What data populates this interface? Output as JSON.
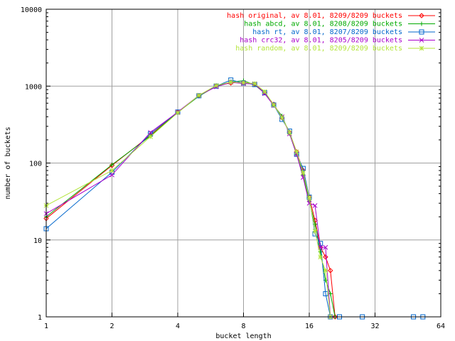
{
  "chart_data": {
    "type": "line",
    "xlabel": "bucket length",
    "ylabel": "number of buckets",
    "xscale": "log2",
    "yscale": "log10",
    "xlim": [
      1,
      64
    ],
    "ylim": [
      1,
      10000
    ],
    "grid": true,
    "legend_position": "top-right",
    "xticks": [
      {
        "value": 1,
        "label": "1"
      },
      {
        "value": 2,
        "label": "2"
      },
      {
        "value": 4,
        "label": "4"
      },
      {
        "value": 8,
        "label": "8"
      },
      {
        "value": 16,
        "label": "16"
      },
      {
        "value": 32,
        "label": "32"
      },
      {
        "value": 64,
        "label": "64"
      }
    ],
    "yticks": [
      {
        "value": 1,
        "label": "1"
      },
      {
        "value": 10,
        "label": "10"
      },
      {
        "value": 100,
        "label": "100"
      },
      {
        "value": 1000,
        "label": "1000"
      },
      {
        "value": 10000,
        "label": "10000"
      }
    ],
    "series": [
      {
        "name": "hash original, av 8.01, 8209/8209 buckets",
        "color": "#ff0000",
        "marker": "diamond",
        "points": [
          [
            1,
            19
          ],
          [
            2,
            93
          ],
          [
            3,
            230
          ],
          [
            4,
            460
          ],
          [
            5,
            750
          ],
          [
            6,
            1010
          ],
          [
            7,
            1100
          ],
          [
            8,
            1120
          ],
          [
            9,
            1060
          ],
          [
            10,
            820
          ],
          [
            11,
            580
          ],
          [
            12,
            390
          ],
          [
            13,
            250
          ],
          [
            14,
            140
          ],
          [
            15,
            80
          ],
          [
            16,
            36
          ],
          [
            17,
            18
          ],
          [
            18,
            8
          ],
          [
            19,
            6
          ],
          [
            20,
            4
          ],
          [
            21,
            1
          ]
        ]
      },
      {
        "name": "hash abcd, av 8.01, 8208/8209 buckets",
        "color": "#00aa00",
        "marker": "plus",
        "points": [
          [
            1,
            20
          ],
          [
            2,
            95
          ],
          [
            3,
            225
          ],
          [
            4,
            455
          ],
          [
            5,
            740
          ],
          [
            6,
            1000
          ],
          [
            7,
            1130
          ],
          [
            8,
            1180
          ],
          [
            9,
            1040
          ],
          [
            10,
            810
          ],
          [
            11,
            560
          ],
          [
            12,
            410
          ],
          [
            13,
            240
          ],
          [
            14,
            130
          ],
          [
            15,
            70
          ],
          [
            16,
            32
          ],
          [
            17,
            16
          ],
          [
            18,
            7
          ],
          [
            19,
            3
          ],
          [
            20,
            2
          ],
          [
            21,
            1
          ]
        ]
      },
      {
        "name": "hash rt, av 8.01, 8207/8209 buckets",
        "color": "#0066cc",
        "marker": "square",
        "points": [
          [
            1,
            14
          ],
          [
            2,
            76
          ],
          [
            3,
            240
          ],
          [
            4,
            460
          ],
          [
            5,
            750
          ],
          [
            6,
            1000
          ],
          [
            7,
            1200
          ],
          [
            8,
            1100
          ],
          [
            9,
            1050
          ],
          [
            10,
            820
          ],
          [
            11,
            570
          ],
          [
            12,
            370
          ],
          [
            13,
            260
          ],
          [
            14,
            130
          ],
          [
            15,
            85
          ],
          [
            16,
            36
          ],
          [
            17,
            12
          ],
          [
            18,
            9
          ],
          [
            19,
            2
          ],
          [
            20,
            1
          ],
          [
            22,
            1
          ],
          [
            28,
            1
          ],
          [
            48,
            1
          ],
          [
            53,
            1
          ]
        ]
      },
      {
        "name": "hash crc32, av 8.01, 8205/8209 buckets",
        "color": "#aa00cc",
        "marker": "cross",
        "points": [
          [
            1,
            22
          ],
          [
            2,
            70
          ],
          [
            3,
            250
          ],
          [
            4,
            460
          ],
          [
            5,
            760
          ],
          [
            6,
            980
          ],
          [
            7,
            1120
          ],
          [
            8,
            1080
          ],
          [
            9,
            1070
          ],
          [
            10,
            800
          ],
          [
            11,
            560
          ],
          [
            12,
            400
          ],
          [
            13,
            240
          ],
          [
            14,
            130
          ],
          [
            15,
            65
          ],
          [
            16,
            30
          ],
          [
            17,
            28
          ],
          [
            18,
            8
          ],
          [
            19,
            8
          ],
          [
            20,
            1
          ]
        ]
      },
      {
        "name": "hash random, av 8.01, 8209/8209 buckets",
        "color": "#b3e53a",
        "marker": "star",
        "points": [
          [
            1,
            28
          ],
          [
            2,
            80
          ],
          [
            3,
            220
          ],
          [
            4,
            450
          ],
          [
            5,
            760
          ],
          [
            6,
            1020
          ],
          [
            7,
            1130
          ],
          [
            8,
            1110
          ],
          [
            9,
            1080
          ],
          [
            10,
            850
          ],
          [
            11,
            570
          ],
          [
            12,
            390
          ],
          [
            13,
            250
          ],
          [
            14,
            140
          ],
          [
            15,
            75
          ],
          [
            16,
            35
          ],
          [
            17,
            13
          ],
          [
            18,
            6
          ],
          [
            19,
            4
          ],
          [
            20,
            1
          ]
        ]
      }
    ]
  }
}
